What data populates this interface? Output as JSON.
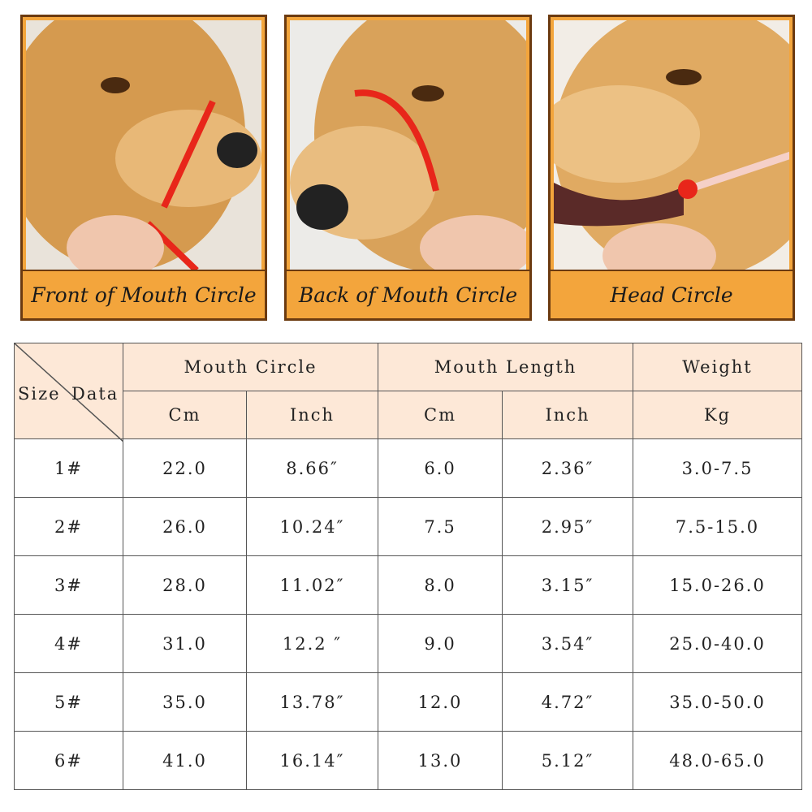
{
  "panels": [
    {
      "caption": "Front of Mouth Circle"
    },
    {
      "caption": "Back of Mouth Circle"
    },
    {
      "caption": "Head Circle"
    }
  ],
  "table": {
    "corner": {
      "left": "Size",
      "right": "Data"
    },
    "groups": [
      "Mouth Circle",
      "Mouth Length",
      "Weight"
    ],
    "units": [
      "Cm",
      "Inch",
      "Cm",
      "Inch",
      "Kg"
    ],
    "rows": [
      [
        "1#",
        "22.0",
        "8.66″",
        "6.0",
        "2.36″",
        "3.0-7.5"
      ],
      [
        "2#",
        "26.0",
        "10.24″",
        "7.5",
        "2.95″",
        "7.5-15.0"
      ],
      [
        "3#",
        "28.0",
        "11.02″",
        "8.0",
        "3.15″",
        "15.0-26.0"
      ],
      [
        "4#",
        "31.0",
        "12.2 ″",
        "9.0",
        "3.54″",
        "25.0-40.0"
      ],
      [
        "5#",
        "35.0",
        "13.78″",
        "12.0",
        "4.72″",
        "35.0-50.0"
      ],
      [
        "6#",
        "41.0",
        "16.14″",
        "13.0",
        "5.12″",
        "48.0-65.0"
      ]
    ]
  }
}
